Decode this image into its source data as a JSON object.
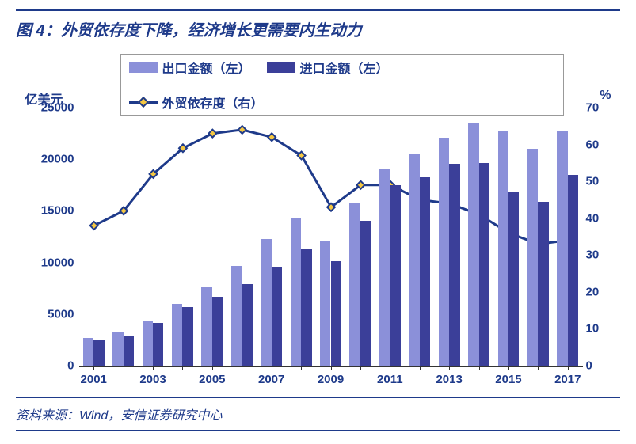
{
  "title_prefix": "图 4：",
  "title_text": "外贸依存度下降，经济增长更需要内生动力",
  "footer": "资料来源：Wind，安信证券研究中心",
  "chart": {
    "type": "bar+line",
    "y_left_label": "亿美元",
    "y_right_label": "%",
    "y_left": {
      "min": 0,
      "max": 25000,
      "step": 5000
    },
    "y_right": {
      "min": 0,
      "max": 70,
      "step": 10
    },
    "x_categories": [
      "2001",
      "2002",
      "2003",
      "2004",
      "2005",
      "2006",
      "2007",
      "2008",
      "2009",
      "2010",
      "2011",
      "2012",
      "2013",
      "2014",
      "2015",
      "2016",
      "2017"
    ],
    "x_tick_labels": [
      "2001",
      "2003",
      "2005",
      "2007",
      "2009",
      "2011",
      "2013",
      "2015",
      "2017"
    ],
    "x_tick_indices": [
      0,
      2,
      4,
      6,
      8,
      10,
      12,
      14,
      16
    ],
    "series": {
      "export": {
        "label": "出口金额（左）",
        "color": "#8b90d9",
        "values": [
          2700,
          3300,
          4400,
          5950,
          7650,
          9700,
          12250,
          14300,
          12100,
          15800,
          19000,
          20500,
          22100,
          23450,
          22800,
          21000,
          22700
        ]
      },
      "import": {
        "label": "进口金额（左）",
        "color": "#3b3f99",
        "values": [
          2450,
          2950,
          4150,
          5650,
          6650,
          7900,
          9600,
          11350,
          10100,
          14000,
          17450,
          18250,
          19550,
          19650,
          16850,
          15900,
          18450
        ]
      },
      "dependency": {
        "label": "外贸依存度（右）",
        "line_color": "#1e3a8a",
        "marker_fill": "#f5c842",
        "marker_stroke": "#1e3a8a",
        "values": [
          38,
          42,
          52,
          59,
          63,
          64,
          62,
          57,
          43,
          49,
          49,
          45,
          44,
          41,
          36,
          33,
          34
        ]
      }
    },
    "bar_group_width": 0.72,
    "line_width": 3,
    "marker_size": 7,
    "background_color": "#ffffff",
    "axis_color": "#333333",
    "text_color": "#1e3a8a"
  }
}
